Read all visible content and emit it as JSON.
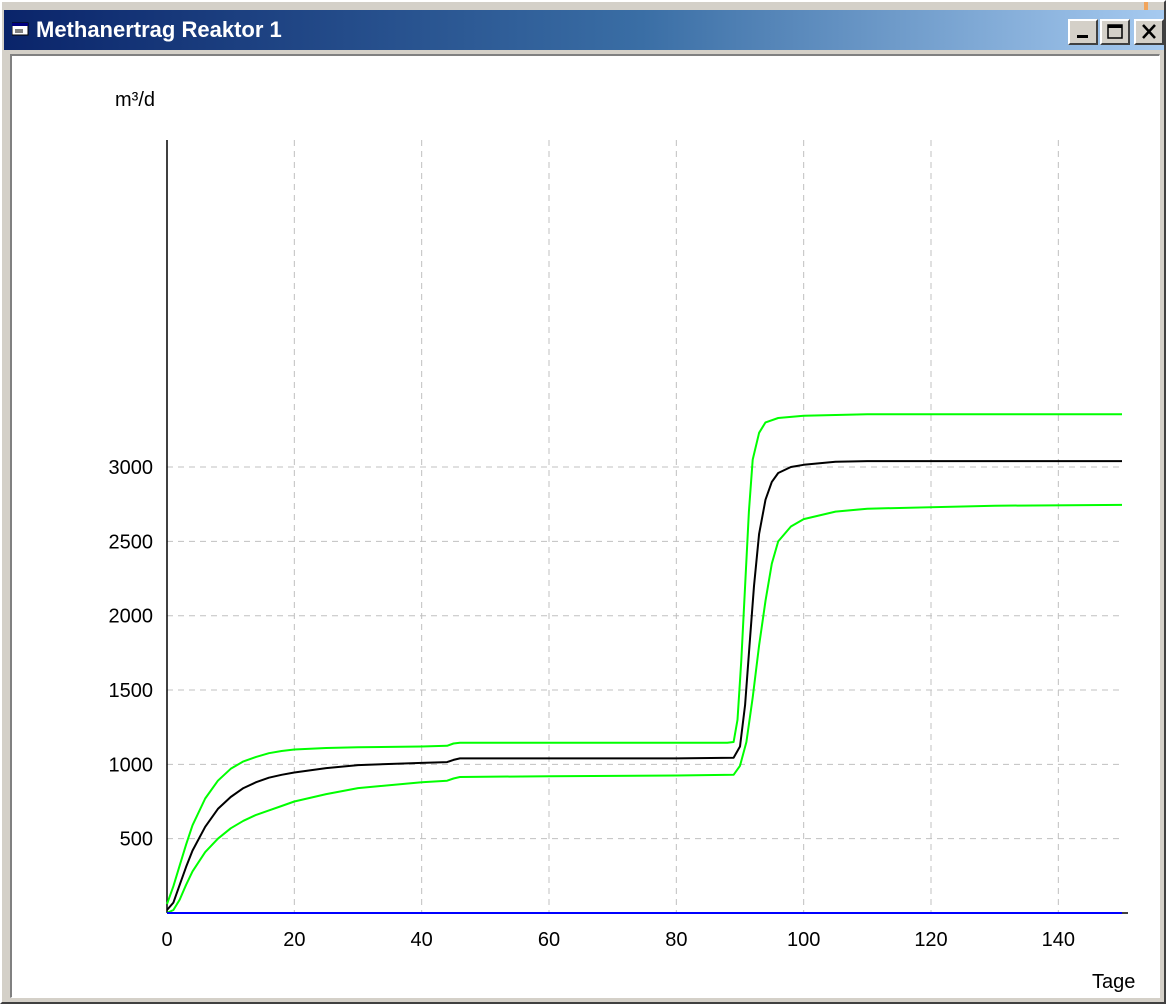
{
  "window": {
    "title": "Methanertrag Reaktor 1",
    "controls": {
      "minimize": "minimize",
      "maximize": "maximize",
      "close": "close"
    }
  },
  "colors": {
    "title_start": "#0a246a",
    "title_end": "#a6caf0",
    "mean_line": "#000000",
    "bound_lines": "#00ff00",
    "baseline": "#0000ff",
    "grid": "#c0c0c0"
  },
  "chart_data": {
    "type": "line",
    "title": "",
    "xlabel": "Tage",
    "ylabel": "m³/d",
    "xlim": [
      0,
      150
    ],
    "ylim": [
      0,
      5200
    ],
    "x_ticks": [
      0,
      20,
      40,
      60,
      80,
      100,
      120,
      140
    ],
    "y_ticks": [
      500,
      1000,
      1500,
      2000,
      2500,
      3000
    ],
    "grid": true,
    "legend": "none",
    "series": [
      {
        "color": "#00ff00",
        "points": [
          [
            0,
            60
          ],
          [
            1,
            180
          ],
          [
            2,
            320
          ],
          [
            3,
            460
          ],
          [
            4,
            590
          ],
          [
            6,
            770
          ],
          [
            8,
            890
          ],
          [
            10,
            970
          ],
          [
            12,
            1020
          ],
          [
            14,
            1050
          ],
          [
            16,
            1075
          ],
          [
            18,
            1090
          ],
          [
            20,
            1100
          ],
          [
            25,
            1110
          ],
          [
            30,
            1115
          ],
          [
            40,
            1120
          ],
          [
            44,
            1125
          ],
          [
            45,
            1140
          ],
          [
            46,
            1145
          ],
          [
            60,
            1145
          ],
          [
            80,
            1145
          ],
          [
            88,
            1145
          ],
          [
            89,
            1150
          ],
          [
            89.6,
            1300
          ],
          [
            90.2,
            1700
          ],
          [
            90.8,
            2200
          ],
          [
            91.4,
            2700
          ],
          [
            92,
            3050
          ],
          [
            93,
            3230
          ],
          [
            94,
            3300
          ],
          [
            96,
            3330
          ],
          [
            100,
            3345
          ],
          [
            110,
            3355
          ],
          [
            130,
            3355
          ],
          [
            150,
            3355
          ]
        ]
      },
      {
        "color": "#000000",
        "points": [
          [
            0,
            20
          ],
          [
            1,
            70
          ],
          [
            2,
            190
          ],
          [
            3,
            310
          ],
          [
            4,
            420
          ],
          [
            6,
            580
          ],
          [
            8,
            700
          ],
          [
            10,
            780
          ],
          [
            12,
            840
          ],
          [
            14,
            880
          ],
          [
            16,
            910
          ],
          [
            18,
            930
          ],
          [
            20,
            945
          ],
          [
            25,
            975
          ],
          [
            30,
            995
          ],
          [
            40,
            1010
          ],
          [
            44,
            1015
          ],
          [
            45,
            1030
          ],
          [
            46,
            1040
          ],
          [
            60,
            1040
          ],
          [
            80,
            1040
          ],
          [
            89,
            1045
          ],
          [
            90,
            1120
          ],
          [
            90.8,
            1400
          ],
          [
            91.5,
            1800
          ],
          [
            92.2,
            2200
          ],
          [
            93,
            2550
          ],
          [
            94,
            2780
          ],
          [
            95,
            2900
          ],
          [
            96,
            2960
          ],
          [
            98,
            3000
          ],
          [
            100,
            3015
          ],
          [
            105,
            3035
          ],
          [
            110,
            3040
          ],
          [
            130,
            3040
          ],
          [
            150,
            3040
          ]
        ]
      },
      {
        "color": "#00ff00",
        "points": [
          [
            0,
            0
          ],
          [
            1,
            20
          ],
          [
            2,
            90
          ],
          [
            3,
            190
          ],
          [
            4,
            280
          ],
          [
            6,
            410
          ],
          [
            8,
            500
          ],
          [
            10,
            570
          ],
          [
            12,
            620
          ],
          [
            14,
            660
          ],
          [
            16,
            690
          ],
          [
            18,
            720
          ],
          [
            20,
            750
          ],
          [
            25,
            800
          ],
          [
            30,
            840
          ],
          [
            40,
            880
          ],
          [
            44,
            890
          ],
          [
            45,
            905
          ],
          [
            46,
            915
          ],
          [
            60,
            920
          ],
          [
            80,
            925
          ],
          [
            89,
            930
          ],
          [
            90,
            990
          ],
          [
            91,
            1150
          ],
          [
            92,
            1450
          ],
          [
            93,
            1800
          ],
          [
            94,
            2100
          ],
          [
            95,
            2350
          ],
          [
            96,
            2500
          ],
          [
            98,
            2600
          ],
          [
            100,
            2650
          ],
          [
            105,
            2700
          ],
          [
            110,
            2720
          ],
          [
            130,
            2740
          ],
          [
            150,
            2745
          ]
        ]
      },
      {
        "color": "#0000ff",
        "points": [
          [
            0,
            0
          ],
          [
            150,
            0
          ]
        ]
      }
    ]
  }
}
